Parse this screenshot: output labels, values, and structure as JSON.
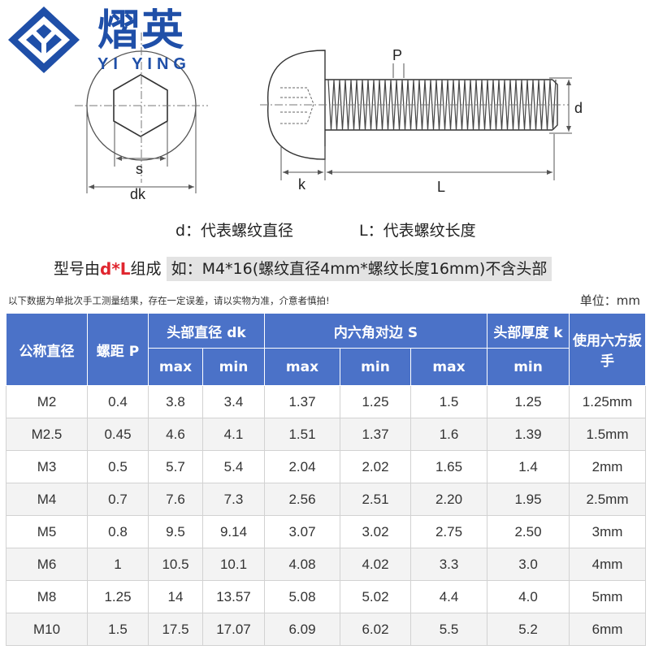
{
  "brand": {
    "cn": "熠英",
    "en": "YI YING",
    "primary_color": "#1f4fa8"
  },
  "diagram": {
    "head_labels": {
      "s": "s",
      "dk": "dk"
    },
    "side_labels": {
      "P": "P",
      "d": "d",
      "k": "k",
      "L": "L"
    }
  },
  "legend": {
    "d_text": "d：代表螺纹直径",
    "L_text": "L：代表螺纹长度"
  },
  "model": {
    "prefix": "型号由",
    "highlight": "d*L",
    "mid": "组成",
    "example": "如：M4*16(螺纹直径4mm*螺纹长度16mm)不含头部",
    "highlight_color": "#e0262f"
  },
  "note": "以下数据为单批次手工测量结果，存在一定误差，请以实物为准，介意者慎拍!",
  "unit": "单位：mm",
  "table": {
    "header_color": "#4b72c8",
    "headers": {
      "nominal": "公称直径",
      "pitch": "螺距 P",
      "dk": "头部直径 dk",
      "s": "内六角对边 S",
      "k": "头部厚度 k",
      "wrench": "使用六方扳手"
    },
    "subheaders": [
      "max",
      "min",
      "max",
      "min",
      "max",
      "min"
    ],
    "rows": [
      [
        "M2",
        "0.4",
        "3.8",
        "3.4",
        "1.37",
        "1.25",
        "1.5",
        "1.25",
        "1.25mm"
      ],
      [
        "M2.5",
        "0.45",
        "4.6",
        "4.1",
        "1.51",
        "1.37",
        "1.6",
        "1.39",
        "1.5mm"
      ],
      [
        "M3",
        "0.5",
        "5.7",
        "5.4",
        "2.04",
        "2.02",
        "1.65",
        "1.4",
        "2mm"
      ],
      [
        "M4",
        "0.7",
        "7.6",
        "7.3",
        "2.56",
        "2.51",
        "2.20",
        "1.95",
        "2.5mm"
      ],
      [
        "M5",
        "0.8",
        "9.5",
        "9.14",
        "3.07",
        "3.02",
        "2.75",
        "2.50",
        "3mm"
      ],
      [
        "M6",
        "1",
        "10.5",
        "10.1",
        "4.08",
        "4.02",
        "3.3",
        "3.0",
        "4mm"
      ],
      [
        "M8",
        "1.25",
        "14",
        "13.57",
        "5.08",
        "5.02",
        "4.4",
        "4.0",
        "5mm"
      ],
      [
        "M10",
        "1.5",
        "17.5",
        "17.07",
        "6.09",
        "6.02",
        "5.5",
        "5.2",
        "6mm"
      ]
    ]
  }
}
